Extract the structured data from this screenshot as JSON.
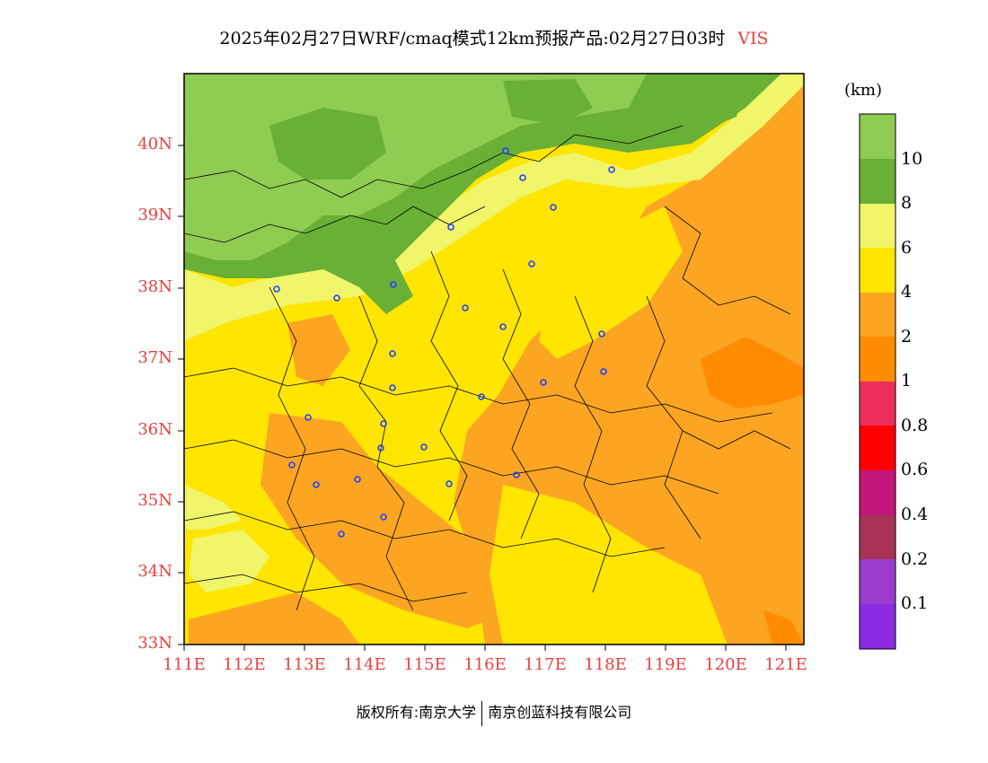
{
  "title": {
    "main": "2025年02月27日WRF/cmaq模式12km预报产品:02月27日03时",
    "variable": "VIS"
  },
  "colors": {
    "accent_red": "#e8413e",
    "levels": [
      "#8b2be2",
      "#9b3ccf",
      "#a83256",
      "#c2167c",
      "#ff0000",
      "#ee2e5a",
      "#ff8c00",
      "#fca523",
      "#ffe500",
      "#f0f56a",
      "#6aaf36",
      "#8fcc52"
    ]
  },
  "lat_labels": [
    "40N",
    "39N",
    "38N",
    "37N",
    "36N",
    "35N",
    "34N",
    "33N"
  ],
  "lon_labels": [
    "111E",
    "112E",
    "113E",
    "114E",
    "115E",
    "116E",
    "117E",
    "118E",
    "119E",
    "120E",
    "121E"
  ],
  "colorbar": {
    "unit": "(km)",
    "labels": [
      "10",
      "8",
      "6",
      "4",
      "2",
      "1",
      "0.8",
      "0.6",
      "0.4",
      "0.2",
      "0.1"
    ]
  },
  "footer": {
    "left": "版权所有:南京大学",
    "right": "南京创蓝科技有限公司"
  }
}
